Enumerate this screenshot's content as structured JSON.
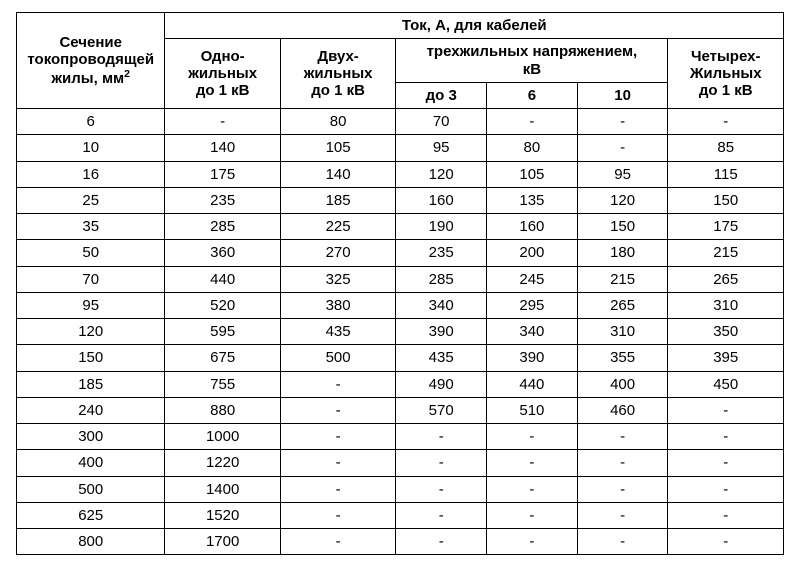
{
  "table": {
    "type": "table",
    "background_color": "#ffffff",
    "border_color": "#000000",
    "text_color": "#000000",
    "font_family": "Arial",
    "header_fontsize": 15,
    "body_fontsize": 15,
    "headers": {
      "section_line1": "Сечение",
      "section_line2": "токопроводящей",
      "section_line3": "жилы, мм",
      "section_sup": "2",
      "top": "Ток, А, для кабелей",
      "single_line1": "Одно-",
      "single_line2": "жильных",
      "single_line3": "до 1 кВ",
      "double_line1": "Двух-",
      "double_line2": "жильных",
      "double_line3": "до 1 кВ",
      "three_top_line1": "трехжильных напряжением,",
      "three_top_line2": "кВ",
      "three_sub1": "до 3",
      "three_sub2": "6",
      "three_sub3": "10",
      "four_line1": "Четырех-",
      "four_line2": "Жильных",
      "four_line3": "до 1 кВ"
    },
    "column_widths_pct": [
      18,
      14,
      14,
      11,
      11,
      11,
      14
    ],
    "rows": [
      [
        "6",
        "-",
        "80",
        "70",
        "-",
        "-",
        "-"
      ],
      [
        "10",
        "140",
        "105",
        "95",
        "80",
        "-",
        "85"
      ],
      [
        "16",
        "175",
        "140",
        "120",
        "105",
        "95",
        "115"
      ],
      [
        "25",
        "235",
        "185",
        "160",
        "135",
        "120",
        "150"
      ],
      [
        "35",
        "285",
        "225",
        "190",
        "160",
        "150",
        "175"
      ],
      [
        "50",
        "360",
        "270",
        "235",
        "200",
        "180",
        "215"
      ],
      [
        "70",
        "440",
        "325",
        "285",
        "245",
        "215",
        "265"
      ],
      [
        "95",
        "520",
        "380",
        "340",
        "295",
        "265",
        "310"
      ],
      [
        "120",
        "595",
        "435",
        "390",
        "340",
        "310",
        "350"
      ],
      [
        "150",
        "675",
        "500",
        "435",
        "390",
        "355",
        "395"
      ],
      [
        "185",
        "755",
        "-",
        "490",
        "440",
        "400",
        "450"
      ],
      [
        "240",
        "880",
        "-",
        "570",
        "510",
        "460",
        "-"
      ],
      [
        "300",
        "1000",
        "-",
        "-",
        "-",
        "-",
        "-"
      ],
      [
        "400",
        "1220",
        "-",
        "-",
        "-",
        "-",
        "-"
      ],
      [
        "500",
        "1400",
        "-",
        "-",
        "-",
        "-",
        "-"
      ],
      [
        "625",
        "1520",
        "-",
        "-",
        "-",
        "-",
        "-"
      ],
      [
        "800",
        "1700",
        "-",
        "-",
        "-",
        "-",
        "-"
      ]
    ]
  }
}
